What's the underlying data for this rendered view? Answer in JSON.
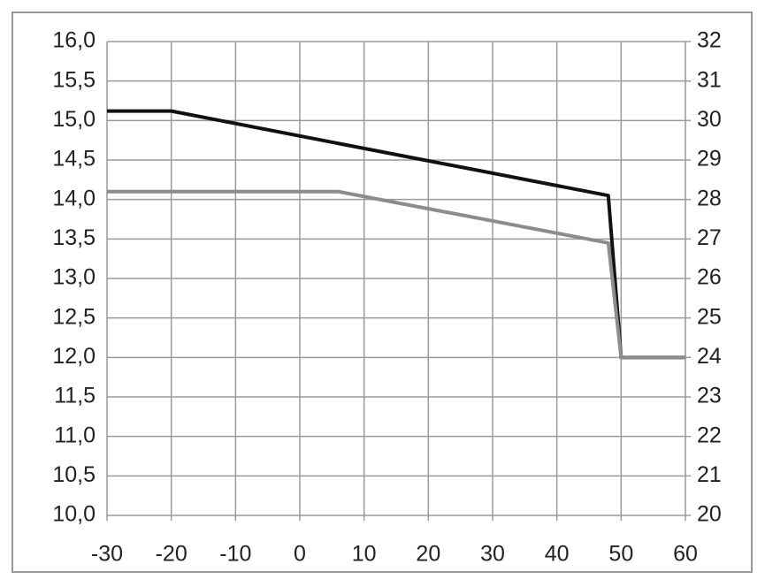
{
  "chart_data": {
    "type": "line",
    "x": [
      -30,
      -20,
      6,
      48,
      50,
      60
    ],
    "series": [
      {
        "color": "#111111",
        "values": [
          15.12,
          15.12,
          14.71,
          14.05,
          12.0,
          12.0
        ]
      },
      {
        "color": "#8c8c8c",
        "values": [
          14.1,
          14.1,
          14.1,
          13.45,
          12.0,
          12.0
        ]
      }
    ],
    "xlim": [
      -30,
      60
    ],
    "xticks": [
      -30,
      -20,
      -10,
      0,
      10,
      20,
      30,
      40,
      50,
      60
    ],
    "ylim": [
      10,
      16
    ],
    "yticks": [
      {
        "value": 10,
        "label": "10,0"
      },
      {
        "value": 10.5,
        "label": "10,5"
      },
      {
        "value": 11,
        "label": "11,0"
      },
      {
        "value": 11.5,
        "label": "11,5"
      },
      {
        "value": 12,
        "label": "12,0"
      },
      {
        "value": 12.5,
        "label": "12,5"
      },
      {
        "value": 13,
        "label": "13,0"
      },
      {
        "value": 13.5,
        "label": "13,5"
      },
      {
        "value": 14,
        "label": "14,0"
      },
      {
        "value": 14.5,
        "label": "14,5"
      },
      {
        "value": 15,
        "label": "15,0"
      },
      {
        "value": 15.5,
        "label": "15,5"
      },
      {
        "value": 16,
        "label": "16,0"
      }
    ],
    "y2lim": [
      20,
      32
    ],
    "y2ticks": [
      20,
      21,
      22,
      23,
      24,
      25,
      26,
      27,
      28,
      29,
      30,
      31,
      32
    ],
    "grid": true
  }
}
